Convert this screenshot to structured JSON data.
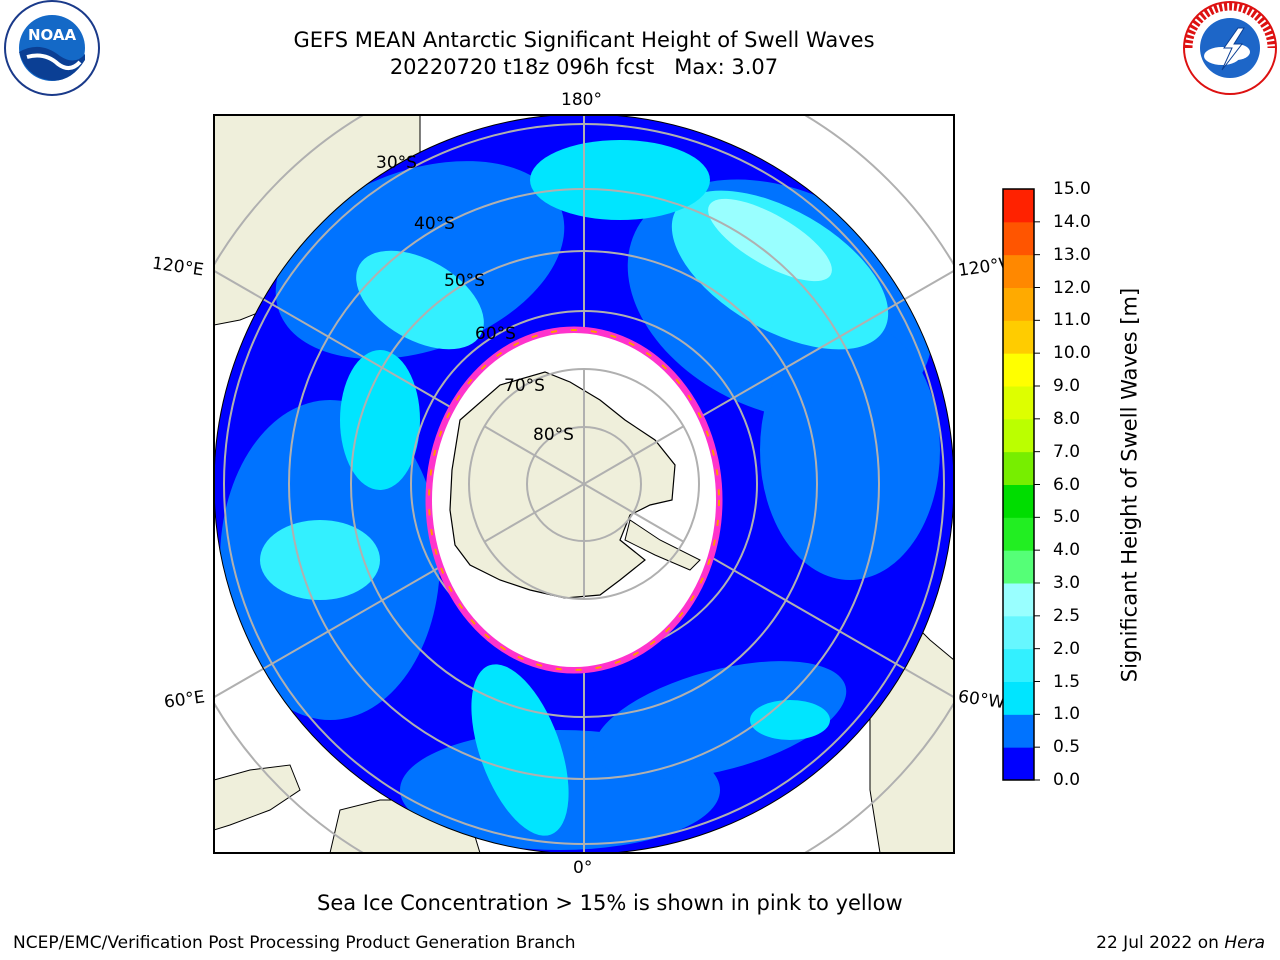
{
  "header": {
    "title_line1": "GEFS MEAN Antarctic Significant Height of Swell Waves",
    "title_line2": "20220720 t18z 096h fcst   Max: 3.07"
  },
  "logos": {
    "noaa": {
      "label": "NOAA",
      "icon": "noaa-logo"
    },
    "nws": {
      "label": "NATIONAL WEATHER SERVICE",
      "icon": "nws-logo"
    }
  },
  "map": {
    "projection": "south-polar-stereographic",
    "land_color": "#efefdb",
    "ice_color": "#ffffff",
    "ice_edge_colors": [
      "#ff33cc",
      "#ff9900",
      "#ffff00"
    ],
    "longitude_labels": {
      "top": "180°",
      "upper_left": "120°E",
      "upper_right": "120°W",
      "lower_left": "60°E",
      "lower_right": "60°W",
      "bottom": "0°"
    },
    "latitude_labels": [
      "30°S",
      "40°S",
      "50°S",
      "60°S",
      "70°S",
      "80°S"
    ]
  },
  "colorbar": {
    "label": "Significant Height of Swell Waves [m]",
    "ticks": [
      "0.0",
      "0.5",
      "1.0",
      "1.5",
      "2.0",
      "2.5",
      "3.0",
      "4.0",
      "5.0",
      "6.0",
      "7.0",
      "8.0",
      "9.0",
      "10.0",
      "11.0",
      "12.0",
      "13.0",
      "14.0",
      "15.0"
    ],
    "colors": [
      "#0000ff",
      "#0073ff",
      "#00e5ff",
      "#33f0ff",
      "#66f7ff",
      "#99ffff",
      "#55ff77",
      "#22ee22",
      "#00dd00",
      "#77ee00",
      "#bbff00",
      "#ddff00",
      "#ffff00",
      "#ffcc00",
      "#ffaa00",
      "#ff8800",
      "#ff5500",
      "#ff2200"
    ]
  },
  "notes": {
    "sea_ice": "Sea Ice Concentration > 15% is shown in pink to yellow"
  },
  "footer": {
    "left": "NCEP/EMC/Verification Post Processing Product Generation Branch",
    "right_prefix": "22 Jul 2022 on ",
    "right_machine": "Hera"
  }
}
